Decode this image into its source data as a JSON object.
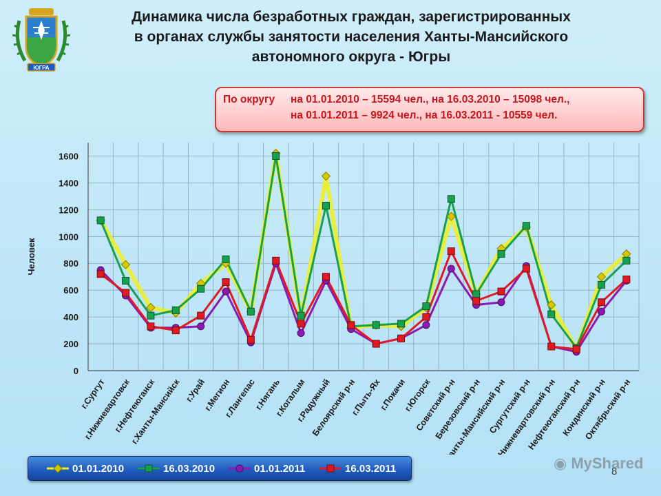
{
  "title": {
    "line1": "Динамика числа безработных граждан, зарегистрированных",
    "line2": "в органах службы занятости населения Ханты-Мансийского",
    "line3": "автономного округа - Югры"
  },
  "info": {
    "label": "По округу",
    "line1": "на 01.01.2010 – 15594 чел., на 16.03.2010 – 15098 чел.,",
    "line2": "на 01.01.2011 – 9924 чел., на 16.03.2011  - 10559 чел."
  },
  "page_number": "8",
  "watermark": "MyShared",
  "colors": {
    "s2010_jan": "#f0f020",
    "s2010_mar": "#16a050",
    "s2011_jan": "#8a1ab0",
    "s2011_mar": "#e01a22"
  },
  "chart_data": {
    "type": "line",
    "ylabel": "Человек",
    "xlabel": "",
    "ylim": [
      0,
      1700
    ],
    "yticks": [
      0,
      200,
      400,
      600,
      800,
      1000,
      1200,
      1400,
      1600
    ],
    "grid": true,
    "legend_position": "bottom",
    "categories": [
      "г.Сургут",
      "г.Нижневартовск",
      "г.Нефтеюганск",
      "г.Ханты-Мансийск",
      "г.Урай",
      "г.Мегион",
      "г.Лангепас",
      "г.Нягань",
      "г.Когалым",
      "г.Радужный",
      "Белоярский р-н",
      "г.Пыть-Ях",
      "г.Покачи",
      "г.Югорск",
      "Советский р-н",
      "Березовский р-н",
      "Ханты-Мансийский р-н",
      "Сургутский р-н",
      "Нижневартовский р-н",
      "Нефтеюганский р-н",
      "Кондинский р-н",
      "Октябрьский р-н"
    ],
    "series": [
      {
        "name": "01.01.2010",
        "color": "#f0f020",
        "marker": "diamond",
        "values": [
          1120,
          790,
          470,
          430,
          650,
          800,
          440,
          1620,
          390,
          1450,
          320,
          340,
          330,
          470,
          1150,
          570,
          910,
          1070,
          490,
          160,
          700,
          870
        ]
      },
      {
        "name": "16.03.2010",
        "color": "#16a050",
        "marker": "square",
        "values": [
          1120,
          670,
          410,
          450,
          610,
          830,
          440,
          1600,
          410,
          1230,
          330,
          340,
          350,
          480,
          1280,
          570,
          870,
          1080,
          420,
          170,
          640,
          820
        ]
      },
      {
        "name": "01.01.2011",
        "color": "#8a1ab0",
        "marker": "circle",
        "values": [
          750,
          560,
          320,
          320,
          330,
          590,
          210,
          800,
          280,
          670,
          310,
          200,
          240,
          340,
          760,
          490,
          510,
          780,
          180,
          140,
          440,
          670
        ]
      },
      {
        "name": "16.03.2011",
        "color": "#e01a22",
        "marker": "square",
        "values": [
          720,
          580,
          330,
          300,
          410,
          660,
          230,
          820,
          350,
          700,
          340,
          200,
          240,
          400,
          890,
          520,
          590,
          760,
          180,
          160,
          510,
          680
        ]
      }
    ]
  }
}
